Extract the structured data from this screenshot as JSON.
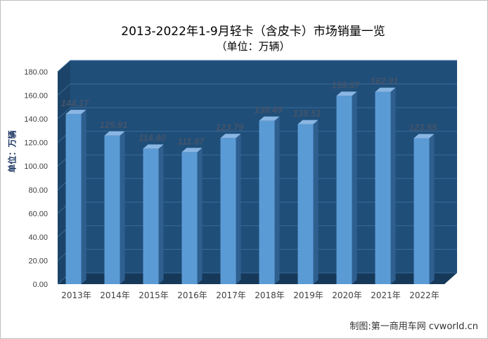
{
  "chart_data": {
    "type": "bar",
    "title": "2013-2022年1-9月轻卡（含皮卡）市场销量一览",
    "subtitle": "（单位：万辆）",
    "ylabel": "单位：万辆",
    "xlabel": "",
    "categories": [
      "2013年",
      "2014年",
      "2015年",
      "2016年",
      "2017年",
      "2018年",
      "2019年",
      "2020年",
      "2021年",
      "2022年"
    ],
    "values": [
      144.17,
      125.91,
      114.8,
      111.87,
      123.79,
      138.49,
      135.51,
      159.57,
      162.91,
      123.65
    ],
    "value_labels": [
      "144.17",
      "125.91",
      "114.80",
      "111.87",
      "123.79",
      "138.49",
      "135.51",
      "159.57",
      "162.91",
      "123.65"
    ],
    "ylim": [
      0,
      180
    ],
    "yticks": [
      "0.00",
      "20.00",
      "40.00",
      "60.00",
      "80.00",
      "100.00",
      "120.00",
      "140.00",
      "160.00",
      "180.00"
    ],
    "grid": true,
    "legend": "none",
    "colors": {
      "bar_front": "#5b9bd5",
      "bar_side": "#2e5f8f",
      "bar_top": "#8ab6e3",
      "wall": "#1f4e79",
      "label": "#44546a"
    }
  },
  "credit": "制图:第一商用车网 cvworld.cn"
}
